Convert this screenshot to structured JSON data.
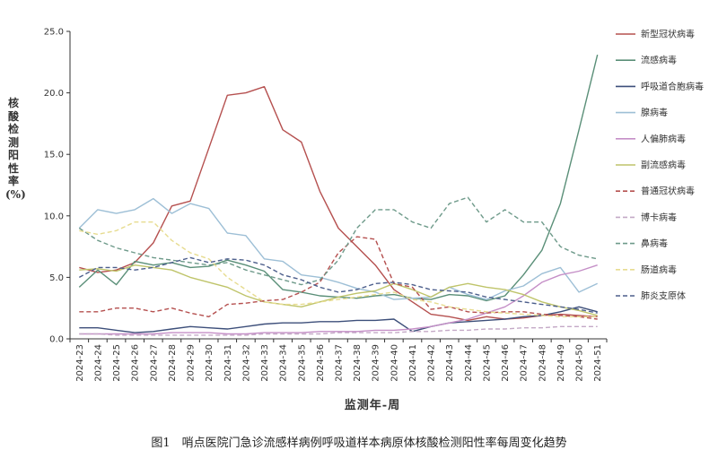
{
  "caption": "图1　哨点医院门急诊流感样病例呼吸道样本病原体核酸检测阳性率每周变化趋势",
  "chart_data": {
    "type": "line",
    "title": "",
    "xlabel": "监测年-周",
    "ylabel": "核酸检测阳性率(%)",
    "ylim": [
      0,
      25
    ],
    "yticks": [
      "0.0",
      "5.0",
      "10.0",
      "15.0",
      "20.0",
      "25.0"
    ],
    "categories": [
      "2024-23",
      "2024-24",
      "2024-25",
      "2024-26",
      "2024-27",
      "2024-28",
      "2024-29",
      "2024-30",
      "2024-31",
      "2024-32",
      "2024-33",
      "2024-34",
      "2024-35",
      "2024-36",
      "2024-37",
      "2024-38",
      "2024-39",
      "2024-40",
      "2024-41",
      "2024-42",
      "2024-43",
      "2024-44",
      "2024-45",
      "2024-46",
      "2024-47",
      "2024-48",
      "2024-49",
      "2024-50",
      "2024-51"
    ],
    "legend_position": "right",
    "grid": false,
    "series": [
      {
        "name": "新型冠状病毒",
        "color": "#b5504f",
        "dash": false,
        "values": [
          5.8,
          5.4,
          5.6,
          6.2,
          7.8,
          10.8,
          11.2,
          15.5,
          19.8,
          20.0,
          20.5,
          17.0,
          16.0,
          12.0,
          9.0,
          7.5,
          6.0,
          4.0,
          3.0,
          2.0,
          1.8,
          1.5,
          1.8,
          1.6,
          1.7,
          1.9,
          2.0,
          1.9,
          1.8
        ]
      },
      {
        "name": "流感病毒",
        "color": "#5a8f78",
        "dash": false,
        "values": [
          4.2,
          5.6,
          4.4,
          6.3,
          6.0,
          6.2,
          5.8,
          5.9,
          6.4,
          6.0,
          5.5,
          4.0,
          3.8,
          3.5,
          3.4,
          3.3,
          3.5,
          3.6,
          3.3,
          3.2,
          3.6,
          3.5,
          3.1,
          3.5,
          5.2,
          7.2,
          11.0,
          17.0,
          23.1
        ]
      },
      {
        "name": "呼吸道合胞病毒",
        "color": "#3d4f7a",
        "dash": false,
        "values": [
          0.9,
          0.9,
          0.7,
          0.5,
          0.6,
          0.8,
          1.0,
          0.9,
          0.8,
          1.0,
          1.2,
          1.3,
          1.3,
          1.4,
          1.4,
          1.5,
          1.5,
          1.6,
          0.6,
          1.0,
          1.3,
          1.4,
          1.5,
          1.6,
          1.8,
          1.9,
          2.2,
          2.6,
          2.2
        ]
      },
      {
        "name": "腺病毒",
        "color": "#9dbfd6",
        "dash": false,
        "values": [
          9.0,
          10.5,
          10.2,
          10.5,
          11.4,
          10.2,
          11.0,
          10.6,
          8.6,
          8.4,
          6.5,
          6.3,
          5.2,
          5.0,
          4.6,
          4.1,
          3.8,
          3.2,
          3.3,
          3.4,
          4.2,
          3.6,
          3.2,
          3.9,
          4.3,
          5.3,
          5.8,
          3.8,
          4.5
        ]
      },
      {
        "name": "人偏肺病毒",
        "color": "#c58fc7",
        "dash": false,
        "values": [
          0.4,
          0.4,
          0.4,
          0.4,
          0.4,
          0.5,
          0.5,
          0.5,
          0.4,
          0.4,
          0.5,
          0.5,
          0.5,
          0.6,
          0.6,
          0.6,
          0.7,
          0.7,
          0.8,
          1.0,
          1.3,
          1.6,
          2.1,
          2.6,
          3.5,
          4.6,
          5.2,
          5.5,
          6.0
        ]
      },
      {
        "name": "副流感病毒",
        "color": "#bfc46a",
        "dash": false,
        "values": [
          5.6,
          5.7,
          5.5,
          6.0,
          5.8,
          5.6,
          5.0,
          4.6,
          4.2,
          3.5,
          3.0,
          2.8,
          2.6,
          3.0,
          3.4,
          3.7,
          3.9,
          4.5,
          4.0,
          3.4,
          4.2,
          4.5,
          4.2,
          4.0,
          3.6,
          3.0,
          2.6,
          2.3,
          1.9
        ]
      },
      {
        "name": "普通冠状病毒",
        "color": "#b5504f",
        "dash": true,
        "values": [
          2.2,
          2.2,
          2.5,
          2.5,
          2.2,
          2.5,
          2.1,
          1.8,
          2.8,
          2.9,
          3.1,
          3.2,
          3.8,
          4.6,
          7.0,
          8.3,
          8.1,
          4.5,
          4.2,
          2.4,
          2.6,
          2.2,
          2.1,
          2.2,
          2.2,
          2.0,
          1.9,
          1.8,
          1.6
        ]
      },
      {
        "name": "博卡病毒",
        "color": "#c4a9c6",
        "dash": true,
        "values": [
          0.4,
          0.4,
          0.3,
          0.3,
          0.3,
          0.3,
          0.3,
          0.3,
          0.3,
          0.3,
          0.4,
          0.4,
          0.4,
          0.4,
          0.5,
          0.5,
          0.5,
          0.5,
          0.6,
          0.6,
          0.7,
          0.7,
          0.8,
          0.8,
          0.9,
          0.9,
          1.0,
          1.0,
          1.0
        ]
      },
      {
        "name": "鼻病毒",
        "color": "#6e9a8a",
        "dash": true,
        "values": [
          9.0,
          8.0,
          7.4,
          7.0,
          6.6,
          6.4,
          6.2,
          6.0,
          6.2,
          5.6,
          5.2,
          4.8,
          4.4,
          4.8,
          6.4,
          9.0,
          10.5,
          10.5,
          9.5,
          9.0,
          11.0,
          11.5,
          9.5,
          10.5,
          9.5,
          9.5,
          7.5,
          6.8,
          6.5
        ]
      },
      {
        "name": "肠道病毒",
        "color": "#e7dc90",
        "dash": true,
        "values": [
          8.8,
          8.5,
          8.8,
          9.5,
          9.5,
          8.0,
          7.0,
          6.5,
          5.0,
          4.0,
          3.0,
          2.8,
          2.8,
          3.0,
          3.2,
          3.4,
          3.6,
          3.8,
          3.2,
          3.0,
          2.6,
          2.4,
          2.2,
          2.1,
          2.0,
          1.9,
          1.8,
          1.8,
          1.8
        ]
      },
      {
        "name": "肺炎支原体",
        "color": "#4d5f8c",
        "dash": true,
        "values": [
          5.0,
          5.8,
          5.8,
          5.6,
          5.8,
          6.2,
          6.6,
          6.2,
          6.5,
          6.4,
          6.0,
          5.2,
          4.8,
          4.2,
          3.8,
          4.0,
          4.5,
          4.6,
          4.4,
          4.0,
          3.9,
          3.8,
          3.4,
          3.2,
          3.0,
          2.8,
          2.6,
          2.4,
          2.1
        ]
      }
    ]
  }
}
